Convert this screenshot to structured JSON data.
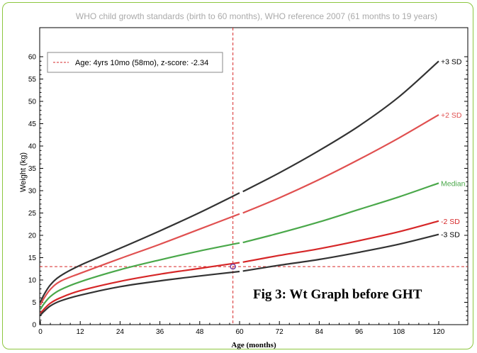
{
  "chart_data": {
    "type": "line",
    "title": "WHO child growth standards (birth to 60 months), WHO reference 2007 (61 months to 19 years)",
    "xlabel": "Age (months)",
    "ylabel": "Weight (kg)",
    "xlim": [
      0,
      120
    ],
    "ylim": [
      0,
      60
    ],
    "xticks": [
      0,
      12,
      24,
      36,
      48,
      60,
      72,
      84,
      96,
      108,
      120
    ],
    "yticks": [
      0,
      5,
      10,
      15,
      20,
      25,
      30,
      35,
      40,
      45,
      50,
      55,
      60
    ],
    "legend": {
      "label": "Age: 4yrs 10mo (58mo), z-score: -2.34",
      "position": "top-left",
      "color": "#d62728"
    },
    "annotation": "Fig 3: Wt Graph before GHT",
    "marker": {
      "x": 58,
      "y": 13,
      "color": "#7b3fa0"
    },
    "crosshair": {
      "x": 58,
      "y": 13,
      "color": "#d62728"
    },
    "series": [
      {
        "name": "+3 SD",
        "color": "#333333",
        "x": [
          0,
          1,
          3,
          6,
          12,
          24,
          36,
          48,
          60,
          61,
          72,
          84,
          96,
          108,
          120
        ],
        "y": [
          5.0,
          6.6,
          8.9,
          10.9,
          13.3,
          17.1,
          21.0,
          25.1,
          29.5,
          29.8,
          34.0,
          39.0,
          44.5,
          51.0,
          59.0
        ]
      },
      {
        "name": "+2 SD",
        "color": "#e05050",
        "x": [
          0,
          1,
          3,
          6,
          12,
          24,
          36,
          48,
          60,
          61,
          72,
          84,
          96,
          108,
          120
        ],
        "y": [
          4.4,
          5.8,
          7.9,
          9.7,
          11.5,
          14.8,
          18.0,
          21.4,
          24.8,
          25.0,
          28.4,
          32.5,
          37.0,
          41.8,
          47.0
        ]
      },
      {
        "name": "Median",
        "color": "#4aa84a",
        "x": [
          0,
          1,
          3,
          6,
          12,
          24,
          36,
          48,
          60,
          61,
          72,
          84,
          96,
          108,
          120
        ],
        "y": [
          3.4,
          4.6,
          6.3,
          7.8,
          9.6,
          12.3,
          14.5,
          16.5,
          18.3,
          18.4,
          20.5,
          23.0,
          25.8,
          28.6,
          31.7
        ]
      },
      {
        "name": "-2 SD",
        "color": "#d62728",
        "x": [
          0,
          1,
          3,
          6,
          12,
          24,
          36,
          48,
          60,
          61,
          72,
          84,
          96,
          108,
          120
        ],
        "y": [
          2.5,
          3.4,
          4.8,
          6.0,
          7.6,
          9.7,
          11.3,
          12.6,
          13.9,
          14.0,
          15.5,
          17.0,
          18.8,
          20.8,
          23.2
        ]
      },
      {
        "name": "-3 SD",
        "color": "#333333",
        "x": [
          0,
          1,
          3,
          6,
          12,
          24,
          36,
          48,
          60,
          61,
          72,
          84,
          96,
          108,
          120
        ],
        "y": [
          2.1,
          2.9,
          4.2,
          5.3,
          6.6,
          8.5,
          9.8,
          10.9,
          11.9,
          12.0,
          13.3,
          14.6,
          16.2,
          18.0,
          20.2
        ]
      }
    ]
  }
}
